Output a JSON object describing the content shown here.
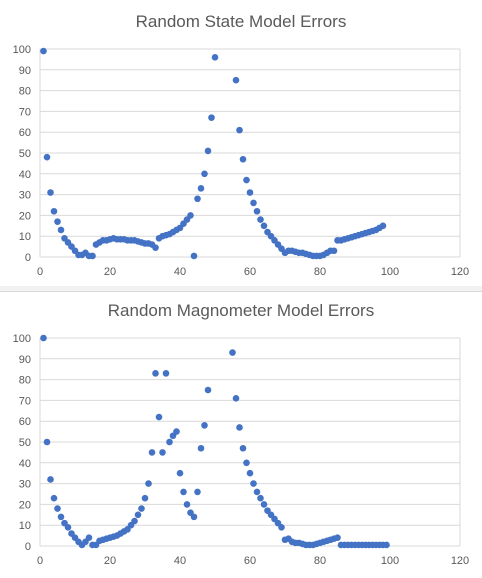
{
  "chart_data": [
    {
      "type": "scatter",
      "title": "Random State Model Errors",
      "xlim": [
        0,
        120
      ],
      "ylim": [
        0,
        100
      ],
      "xticks": [
        0,
        20,
        40,
        60,
        80,
        100,
        120
      ],
      "yticks": [
        0,
        10,
        20,
        30,
        40,
        50,
        60,
        70,
        80,
        90,
        100
      ],
      "grid": "horizontal",
      "marker_color": "#4472c4",
      "points": [
        [
          1,
          99
        ],
        [
          2,
          48
        ],
        [
          3,
          31
        ],
        [
          4,
          22
        ],
        [
          5,
          17
        ],
        [
          6,
          13
        ],
        [
          7,
          9
        ],
        [
          8,
          7
        ],
        [
          9,
          5
        ],
        [
          10,
          3
        ],
        [
          11,
          1
        ],
        [
          12,
          1
        ],
        [
          13,
          2
        ],
        [
          14,
          0.5
        ],
        [
          15,
          0.5
        ],
        [
          16,
          6
        ],
        [
          17,
          7
        ],
        [
          18,
          8
        ],
        [
          19,
          8
        ],
        [
          20,
          8.5
        ],
        [
          21,
          9
        ],
        [
          22,
          8.5
        ],
        [
          23,
          8.5
        ],
        [
          24,
          8.5
        ],
        [
          25,
          8
        ],
        [
          26,
          8
        ],
        [
          27,
          8
        ],
        [
          28,
          7.5
        ],
        [
          29,
          7
        ],
        [
          30,
          6.5
        ],
        [
          31,
          6.5
        ],
        [
          32,
          6
        ],
        [
          33,
          4.5
        ],
        [
          34,
          9
        ],
        [
          35,
          10
        ],
        [
          36,
          10.5
        ],
        [
          37,
          11
        ],
        [
          38,
          12
        ],
        [
          39,
          13
        ],
        [
          40,
          14
        ],
        [
          41,
          16
        ],
        [
          42,
          18
        ],
        [
          43,
          20
        ],
        [
          44,
          0.5
        ],
        [
          45,
          28
        ],
        [
          46,
          33
        ],
        [
          47,
          40
        ],
        [
          48,
          51
        ],
        [
          49,
          67
        ],
        [
          50,
          96
        ],
        [
          56,
          85
        ],
        [
          57,
          61
        ],
        [
          58,
          47
        ],
        [
          59,
          37
        ],
        [
          60,
          31
        ],
        [
          61,
          26
        ],
        [
          62,
          22
        ],
        [
          63,
          18
        ],
        [
          64,
          15
        ],
        [
          65,
          12
        ],
        [
          66,
          10
        ],
        [
          67,
          8
        ],
        [
          68,
          6
        ],
        [
          69,
          4
        ],
        [
          70,
          2
        ],
        [
          71,
          3
        ],
        [
          72,
          3
        ],
        [
          73,
          2.5
        ],
        [
          74,
          2
        ],
        [
          75,
          2
        ],
        [
          76,
          1.5
        ],
        [
          77,
          1
        ],
        [
          78,
          0.5
        ],
        [
          79,
          0.5
        ],
        [
          80,
          0.5
        ],
        [
          81,
          1
        ],
        [
          82,
          2
        ],
        [
          83,
          3
        ],
        [
          84,
          3
        ],
        [
          85,
          8
        ],
        [
          86,
          8
        ],
        [
          87,
          8.5
        ],
        [
          88,
          9
        ],
        [
          89,
          9.5
        ],
        [
          90,
          10
        ],
        [
          91,
          10.5
        ],
        [
          92,
          11
        ],
        [
          93,
          11.5
        ],
        [
          94,
          12
        ],
        [
          95,
          12.5
        ],
        [
          96,
          13
        ],
        [
          97,
          14
        ],
        [
          98,
          15
        ]
      ]
    },
    {
      "type": "scatter",
      "title": "Random Magnometer Model Errors",
      "xlim": [
        0,
        120
      ],
      "ylim": [
        0,
        100
      ],
      "xticks": [
        0,
        20,
        40,
        60,
        80,
        100,
        120
      ],
      "yticks": [
        0,
        10,
        20,
        30,
        40,
        50,
        60,
        70,
        80,
        90,
        100
      ],
      "grid": "horizontal",
      "marker_color": "#4472c4",
      "points": [
        [
          1,
          100
        ],
        [
          2,
          50
        ],
        [
          3,
          32
        ],
        [
          4,
          23
        ],
        [
          5,
          18
        ],
        [
          6,
          14
        ],
        [
          7,
          11
        ],
        [
          8,
          9
        ],
        [
          9,
          6
        ],
        [
          10,
          4
        ],
        [
          11,
          2
        ],
        [
          12,
          0.5
        ],
        [
          13,
          2
        ],
        [
          14,
          4
        ],
        [
          15,
          0.5
        ],
        [
          16,
          0.5
        ],
        [
          17,
          2.5
        ],
        [
          18,
          3
        ],
        [
          19,
          3.5
        ],
        [
          20,
          4
        ],
        [
          21,
          4.5
        ],
        [
          22,
          5
        ],
        [
          23,
          6
        ],
        [
          24,
          7
        ],
        [
          25,
          8
        ],
        [
          26,
          10
        ],
        [
          27,
          12
        ],
        [
          28,
          15
        ],
        [
          29,
          18
        ],
        [
          30,
          23
        ],
        [
          31,
          30
        ],
        [
          32,
          45
        ],
        [
          33,
          83
        ],
        [
          34,
          62
        ],
        [
          35,
          45
        ],
        [
          36,
          83
        ],
        [
          37,
          50
        ],
        [
          38,
          53
        ],
        [
          39,
          55
        ],
        [
          40,
          35
        ],
        [
          41,
          26
        ],
        [
          42,
          20
        ],
        [
          43,
          16
        ],
        [
          44,
          14
        ],
        [
          45,
          26
        ],
        [
          46,
          47
        ],
        [
          47,
          58
        ],
        [
          48,
          75
        ],
        [
          55,
          93
        ],
        [
          56,
          71
        ],
        [
          57,
          57
        ],
        [
          58,
          47
        ],
        [
          59,
          40
        ],
        [
          60,
          35
        ],
        [
          61,
          30
        ],
        [
          62,
          26
        ],
        [
          63,
          23
        ],
        [
          64,
          20
        ],
        [
          65,
          17
        ],
        [
          66,
          15
        ],
        [
          67,
          13
        ],
        [
          68,
          11
        ],
        [
          69,
          9
        ],
        [
          70,
          3
        ],
        [
          71,
          3.5
        ],
        [
          72,
          2
        ],
        [
          73,
          1.5
        ],
        [
          74,
          1.5
        ],
        [
          75,
          1
        ],
        [
          76,
          0.5
        ],
        [
          77,
          0.5
        ],
        [
          78,
          0.5
        ],
        [
          79,
          1
        ],
        [
          80,
          1.5
        ],
        [
          81,
          2
        ],
        [
          82,
          2.5
        ],
        [
          83,
          3
        ],
        [
          84,
          3.5
        ],
        [
          85,
          4
        ],
        [
          86,
          0.5
        ],
        [
          87,
          0.5
        ],
        [
          88,
          0.5
        ],
        [
          89,
          0.5
        ],
        [
          90,
          0.5
        ],
        [
          91,
          0.5
        ],
        [
          92,
          0.5
        ],
        [
          93,
          0.5
        ],
        [
          94,
          0.5
        ],
        [
          95,
          0.5
        ],
        [
          96,
          0.5
        ],
        [
          97,
          0.5
        ],
        [
          98,
          0.5
        ],
        [
          99,
          0.5
        ]
      ]
    }
  ]
}
